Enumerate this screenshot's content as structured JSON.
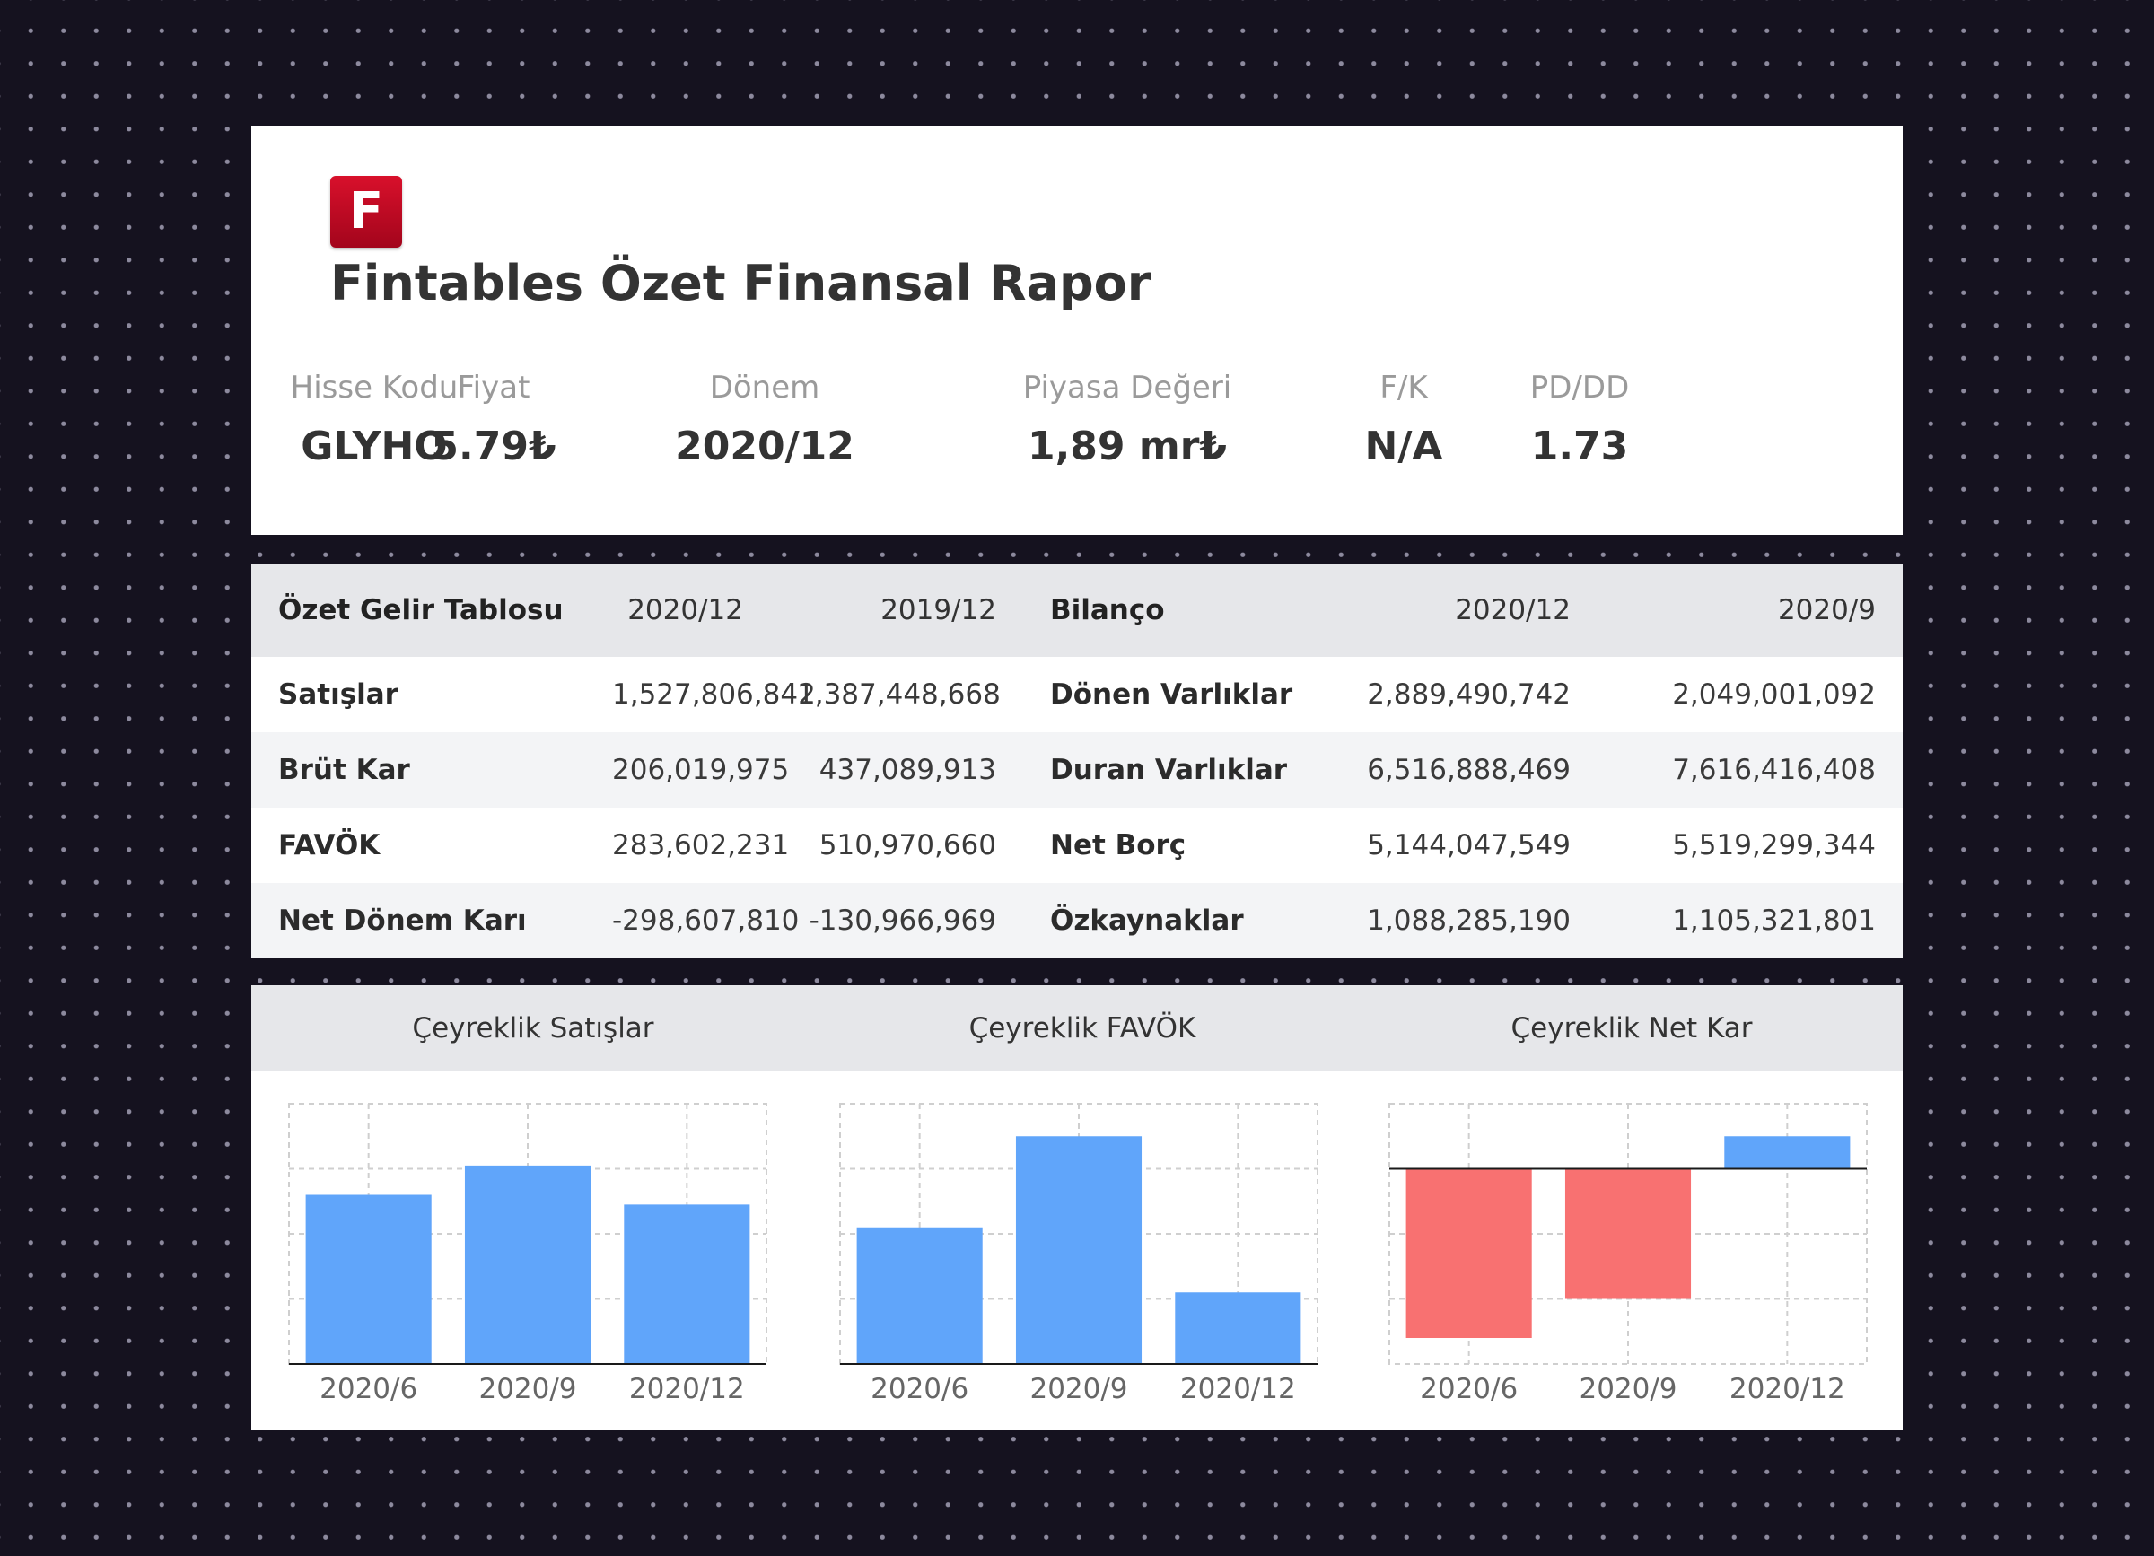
{
  "header": {
    "logo_letter": "F",
    "title": "Fintables Özet Finansal Rapor",
    "metrics": [
      {
        "label": "Hisse Kodu",
        "value": "GLYHO"
      },
      {
        "label": "Fiyat",
        "value": "5.79₺"
      },
      {
        "label": "Dönem",
        "value": "2020/12"
      },
      {
        "label": "Piyasa Değeri",
        "value": "1,89 mr₺"
      },
      {
        "label": "F/K",
        "value": "N/A"
      },
      {
        "label": "PD/DD",
        "value": "1.73"
      }
    ]
  },
  "tables": {
    "income": {
      "title": "Özet Gelir Tablosu",
      "columns": [
        "2020/12",
        "2019/12"
      ],
      "rows": [
        {
          "label": "Satışlar",
          "values": [
            "1,527,806,842",
            "1,387,448,668"
          ]
        },
        {
          "label": "Brüt Kar",
          "values": [
            "206,019,975",
            "437,089,913"
          ]
        },
        {
          "label": "FAVÖK",
          "values": [
            "283,602,231",
            "510,970,660"
          ]
        },
        {
          "label": "Net Dönem Karı",
          "values": [
            "-298,607,810",
            "-130,966,969"
          ]
        }
      ]
    },
    "balance": {
      "title": "Bilanço",
      "columns": [
        "2020/12",
        "2020/9"
      ],
      "rows": [
        {
          "label": "Dönen Varlıklar",
          "values": [
            "2,889,490,742",
            "2,049,001,092"
          ]
        },
        {
          "label": "Duran Varlıklar",
          "values": [
            "6,516,888,469",
            "7,616,416,408"
          ]
        },
        {
          "label": "Net Borç",
          "values": [
            "5,144,047,549",
            "5,519,299,344"
          ]
        },
        {
          "label": "Özkaynaklar",
          "values": [
            "1,088,285,190",
            "1,105,321,801"
          ]
        }
      ]
    }
  },
  "colors": {
    "positive": "#60a5fa",
    "negative": "#f87171"
  },
  "chart_data": [
    {
      "type": "bar",
      "title": "Çeyreklik Satışlar",
      "categories": [
        "2020/6",
        "2020/9",
        "2020/12"
      ],
      "values": [
        2.6,
        3.05,
        2.45
      ],
      "ylim": [
        0,
        4
      ],
      "grid": true
    },
    {
      "type": "bar",
      "title": "Çeyreklik FAVÖK",
      "categories": [
        "2020/6",
        "2020/9",
        "2020/12"
      ],
      "values": [
        2.1,
        3.5,
        1.1
      ],
      "ylim": [
        0,
        4
      ],
      "grid": true
    },
    {
      "type": "bar",
      "title": "Çeyreklik Net Kar",
      "categories": [
        "2020/6",
        "2020/9",
        "2020/12"
      ],
      "values": [
        -2.6,
        -2.0,
        0.5
      ],
      "ylim": [
        -3,
        1
      ],
      "grid": true
    }
  ]
}
